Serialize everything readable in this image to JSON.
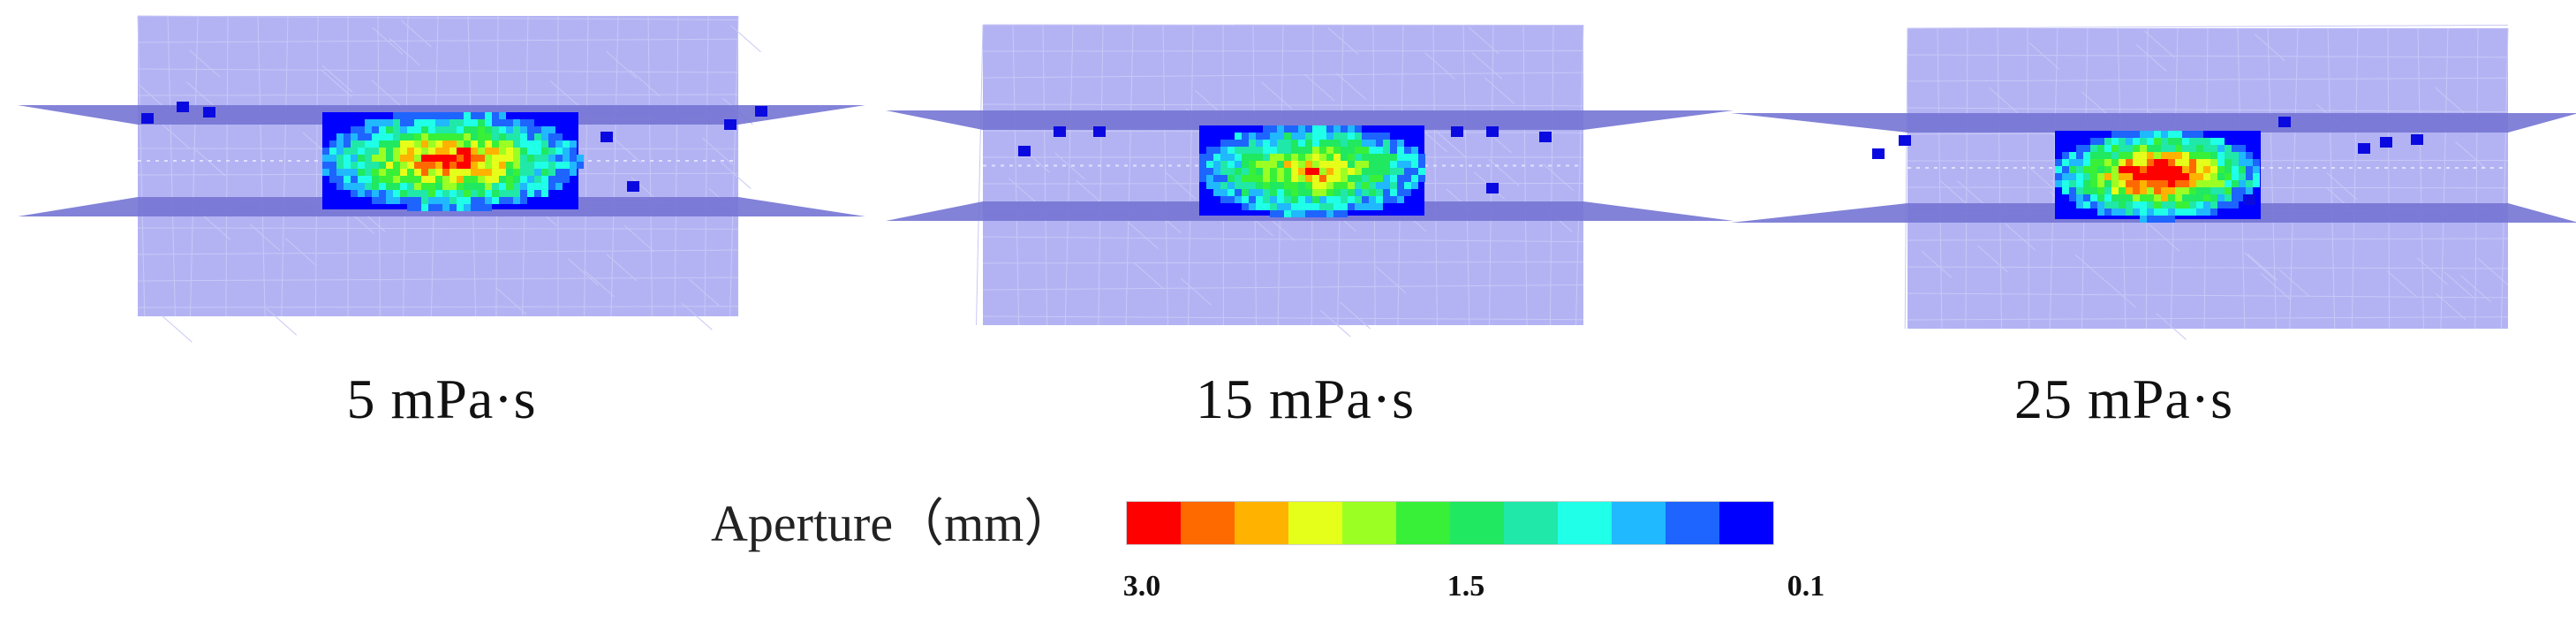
{
  "panels": [
    {
      "caption": "5 mPa·s",
      "viscosity_mPa_s": 5,
      "core_intensity": 0.85
    },
    {
      "caption": "15 mPa·s",
      "viscosity_mPa_s": 15,
      "core_intensity": 0.7
    },
    {
      "caption": "25 mPa·s",
      "viscosity_mPa_s": 25,
      "core_intensity": 1.0
    }
  ],
  "legend": {
    "title": "Aperture（mm）",
    "ticks": [
      "3.0",
      "1.5",
      "0.1"
    ],
    "colors": [
      "#ff0000",
      "#ff6a00",
      "#ffb300",
      "#e6ff1a",
      "#9cff24",
      "#38f038",
      "#20e860",
      "#20e8a8",
      "#20ffe8",
      "#20b8ff",
      "#1e64ff",
      "#0000ff"
    ]
  },
  "colors": {
    "mesh_fill": "#b3b3f4",
    "mesh_line": "#c8c8f6",
    "fracture_plane": "#7474d4",
    "background": "#ffffff"
  }
}
